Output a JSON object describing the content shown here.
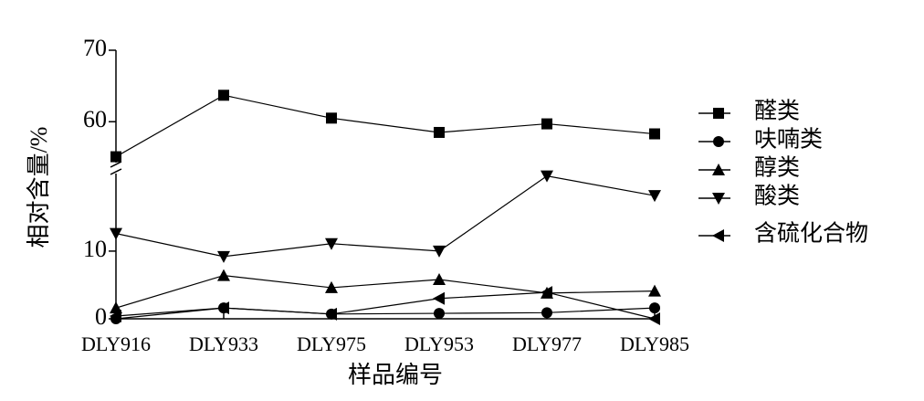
{
  "chart_data": {
    "type": "line",
    "xlabel": "样品编号",
    "ylabel": "相对含量/%",
    "categories": [
      "DLY916",
      "DLY933",
      "DLY975",
      "DLY953",
      "DLY977",
      "DLY985"
    ],
    "ylim": [
      0,
      70
    ],
    "y_break": [
      22,
      53
    ],
    "yticks": [
      0,
      10,
      60,
      70
    ],
    "series": [
      {
        "name": "醛类",
        "color": "#000000",
        "marker": "square",
        "values": [
          55.1,
          63.7,
          60.5,
          58.5,
          59.7,
          58.3
        ]
      },
      {
        "name": "呋喃类",
        "color": "#000000",
        "marker": "circle",
        "values": [
          0,
          1.6,
          0.7,
          0.8,
          0.9,
          1.6
        ]
      },
      {
        "name": "醇类",
        "color": "#000000",
        "marker": "triangle-up",
        "values": [
          1.6,
          6.4,
          4.6,
          5.8,
          3.8,
          4.1
        ]
      },
      {
        "name": "酸类",
        "color": "#000000",
        "marker": "triangle-down",
        "values": [
          12.6,
          9.2,
          11.1,
          10.0,
          21.1,
          18.2
        ]
      },
      {
        "name": "含硫化合物",
        "color": "#000000",
        "marker": "triangle-left",
        "values": [
          0.4,
          1.6,
          0.7,
          3.0,
          3.9,
          0
        ]
      }
    ]
  }
}
